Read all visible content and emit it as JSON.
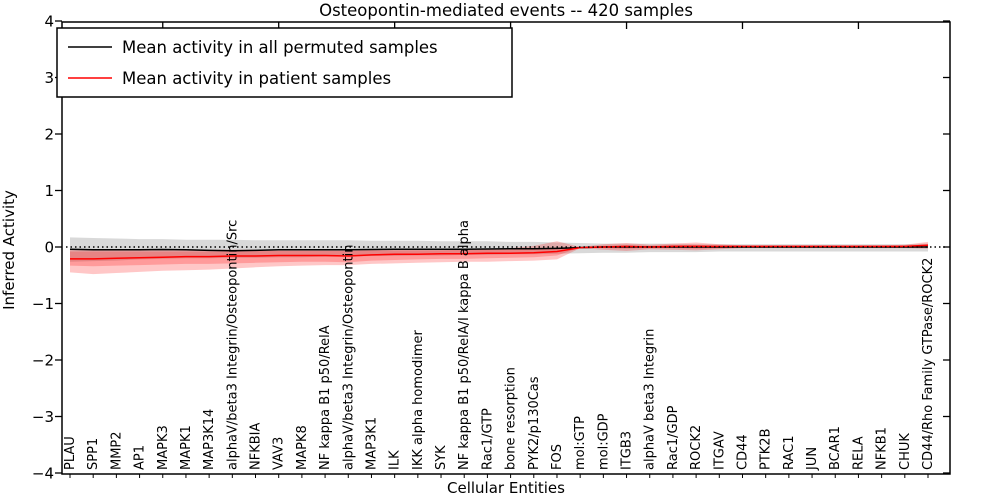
{
  "figure": {
    "title": "Osteopontin-mediated events -- 420 samples",
    "xlabel": "Cellular Entities",
    "ylabel": "Inferred Activity"
  },
  "legend": {
    "position": "upper left",
    "items": [
      {
        "label": "Mean activity in all permuted samples",
        "color": "#000000"
      },
      {
        "label": "Mean activity in patient samples",
        "color": "#ff0000"
      }
    ]
  },
  "chart_data": {
    "type": "line",
    "title": "Osteopontin-mediated events -- 420 samples",
    "xlabel": "Cellular Entities",
    "ylabel": "Inferred Activity",
    "ylim": [
      -4,
      4
    ],
    "yticks": [
      4,
      3,
      2,
      1,
      0,
      -1,
      -2,
      -3,
      -4
    ],
    "ytick_labels": [
      "4",
      "3",
      "2",
      "1",
      "0",
      "−1",
      "−2",
      "−3",
      "−4"
    ],
    "grid": false,
    "legend_position": "upper left",
    "zero_reference_line": 0,
    "x_major_tick_every": 5,
    "categories": [
      "PLAU",
      "SPP1",
      "MMP2",
      "AP1",
      "MAPK3",
      "MAPK1",
      "MAP3K14",
      "alphaV/beta3 Integrin/Osteopontin/Src",
      "NFKBIA",
      "VAV3",
      "MAPK8",
      "NF kappa B1 p50/RelA",
      "alphaV/beta3 Integrin/Osteopontin",
      "MAP3K1",
      "ILK",
      "IKK alpha homodimer",
      "SYK",
      "NF kappa B1 p50/RelA/I kappa B alpha",
      "Rac1/GTP",
      "bone resorption",
      "PYK2/p130Cas",
      "FOS",
      "mol:GTP",
      "mol:GDP",
      "ITGB3",
      "alphaV beta3 Integrin",
      "Rac1/GDP",
      "ROCK2",
      "ITGAV",
      "CD44",
      "PTK2B",
      "RAC1",
      "JUN",
      "BCAR1",
      "RELA",
      "NFKB1",
      "CHUK",
      "CD44/Rho Family GTPase/ROCK2"
    ],
    "series": [
      {
        "name": "Mean activity in all permuted samples",
        "color": "#000000",
        "style": "solid",
        "values": [
          -0.04,
          -0.05,
          -0.05,
          -0.05,
          -0.045,
          -0.05,
          -0.06,
          -0.065,
          -0.06,
          -0.05,
          -0.05,
          -0.05,
          -0.05,
          -0.045,
          -0.04,
          -0.04,
          -0.04,
          -0.04,
          -0.035,
          -0.03,
          -0.03,
          -0.025,
          -0.01,
          0,
          0,
          0,
          0,
          0,
          0,
          0,
          0,
          0,
          0,
          0,
          0,
          0,
          0,
          0
        ]
      },
      {
        "name": "Mean activity in patient samples",
        "color": "#ff0000",
        "style": "solid",
        "values": [
          -0.21,
          -0.21,
          -0.2,
          -0.19,
          -0.18,
          -0.17,
          -0.17,
          -0.16,
          -0.16,
          -0.15,
          -0.15,
          -0.15,
          -0.16,
          -0.14,
          -0.13,
          -0.13,
          -0.12,
          -0.12,
          -0.11,
          -0.11,
          -0.1,
          -0.08,
          -0.01,
          0,
          0.01,
          0,
          0.01,
          0.01,
          0.01,
          0.01,
          0.01,
          0.01,
          0.01,
          0.01,
          0.01,
          0.01,
          0.01,
          0.03
        ]
      }
    ],
    "bands": [
      {
        "name": "permuted-samples-range",
        "color": "rgba(0,0,0,0.15)",
        "top": [
          0.17,
          0.16,
          0.15,
          0.14,
          0.14,
          0.13,
          0.13,
          0.13,
          0.12,
          0.12,
          0.12,
          0.12,
          0.12,
          0.11,
          0.11,
          0.11,
          0.1,
          0.1,
          0.1,
          0.09,
          0.09,
          0.08,
          0.07,
          0.06,
          0.06,
          0.06,
          0.06,
          0.05,
          0.05,
          0.05,
          0.05,
          0.05,
          0.05,
          0.05,
          0.05,
          0.05,
          0.05,
          0.06
        ],
        "bottom": [
          -0.26,
          -0.25,
          -0.24,
          -0.22,
          -0.21,
          -0.2,
          -0.2,
          -0.19,
          -0.19,
          -0.18,
          -0.18,
          -0.17,
          -0.17,
          -0.16,
          -0.16,
          -0.15,
          -0.15,
          -0.14,
          -0.14,
          -0.13,
          -0.13,
          -0.12,
          -0.11,
          -0.1,
          -0.1,
          -0.09,
          -0.09,
          -0.09,
          -0.08,
          -0.08,
          -0.08,
          -0.08,
          -0.08,
          -0.08,
          -0.08,
          -0.08,
          -0.08,
          -0.08
        ]
      },
      {
        "name": "patient-samples-range-outer",
        "color": "rgba(255,0,0,0.22)",
        "top": [
          -0.04,
          -0.04,
          -0.045,
          -0.05,
          -0.05,
          -0.05,
          -0.05,
          -0.05,
          -0.05,
          -0.05,
          -0.04,
          -0.04,
          -0.04,
          -0.04,
          -0.04,
          -0.04,
          -0.04,
          -0.03,
          -0.03,
          -0.02,
          0.02,
          0.1,
          0.0,
          0.05,
          0.07,
          0.04,
          0.06,
          0.08,
          0.05,
          0.03,
          0.03,
          0.03,
          0.03,
          0.03,
          0.03,
          0.03,
          0.04,
          0.09
        ],
        "bottom": [
          -0.45,
          -0.48,
          -0.46,
          -0.44,
          -0.42,
          -0.41,
          -0.4,
          -0.38,
          -0.36,
          -0.34,
          -0.33,
          -0.32,
          -0.32,
          -0.3,
          -0.29,
          -0.28,
          -0.27,
          -0.26,
          -0.26,
          -0.25,
          -0.24,
          -0.22,
          -0.02,
          -0.05,
          -0.07,
          -0.04,
          -0.05,
          -0.06,
          -0.04,
          -0.02,
          -0.02,
          -0.02,
          -0.02,
          -0.02,
          -0.02,
          -0.02,
          -0.02,
          -0.03
        ]
      },
      {
        "name": "patient-samples-range-inner",
        "color": "rgba(255,0,0,0.22)",
        "top": [
          -0.08,
          -0.08,
          -0.08,
          -0.08,
          -0.08,
          -0.08,
          -0.08,
          -0.08,
          -0.07,
          -0.07,
          -0.07,
          -0.07,
          -0.07,
          -0.06,
          -0.06,
          -0.06,
          -0.06,
          -0.05,
          -0.05,
          -0.05,
          -0.04,
          -0.03,
          0.0,
          0.02,
          0.03,
          0.02,
          0.03,
          0.04,
          0.02,
          0.02,
          0.01,
          0.01,
          0.01,
          0.01,
          0.01,
          0.01,
          0.02,
          0.05
        ],
        "bottom": [
          -0.33,
          -0.34,
          -0.33,
          -0.32,
          -0.31,
          -0.3,
          -0.3,
          -0.29,
          -0.28,
          -0.27,
          -0.26,
          -0.26,
          -0.27,
          -0.24,
          -0.23,
          -0.22,
          -0.21,
          -0.21,
          -0.2,
          -0.19,
          -0.18,
          -0.15,
          -0.01,
          -0.02,
          -0.03,
          -0.02,
          -0.02,
          -0.03,
          -0.02,
          -0.01,
          -0.01,
          -0.01,
          -0.01,
          -0.01,
          -0.01,
          -0.01,
          -0.01,
          -0.01
        ]
      }
    ]
  }
}
